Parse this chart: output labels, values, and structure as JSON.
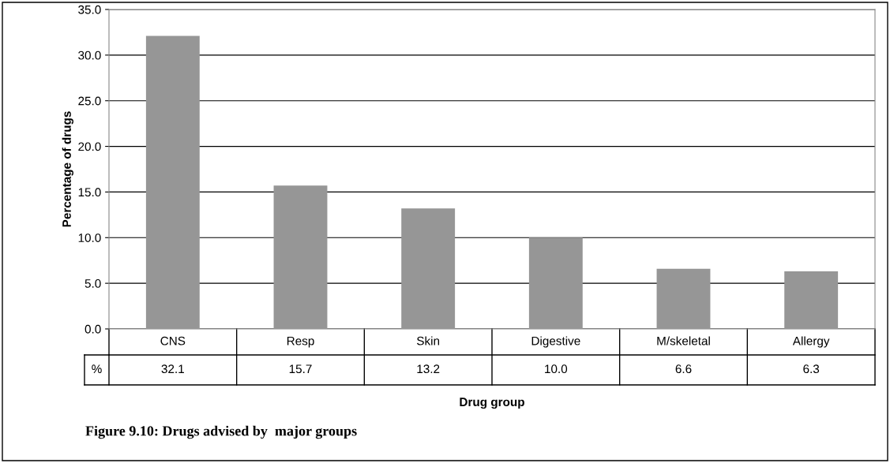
{
  "chart_data": {
    "type": "bar",
    "categories": [
      "CNS",
      "Resp",
      "Skin",
      "Digestive",
      "M/skeletal",
      "Allergy"
    ],
    "series": [
      {
        "name": "%",
        "color": "#969696",
        "values": [
          32.1,
          15.7,
          13.2,
          10.0,
          6.6,
          6.3
        ]
      }
    ],
    "value_labels": [
      "32.1",
      "15.7",
      "13.2",
      "10.0",
      "6.6",
      "6.3"
    ],
    "ylabel": "Percentage of drugs",
    "xlabel": "Drug group",
    "ylim": [
      0,
      35
    ],
    "yticks": [
      {
        "value": 0,
        "label": "0.0"
      },
      {
        "value": 5,
        "label": "5.0"
      },
      {
        "value": 10,
        "label": "10.0"
      },
      {
        "value": 15,
        "label": "15.0"
      },
      {
        "value": 20,
        "label": "20.0"
      },
      {
        "value": 25,
        "label": "25.0"
      },
      {
        "value": 30,
        "label": "30.0"
      },
      {
        "value": 35,
        "label": "35.0"
      }
    ],
    "grid": "y",
    "annotations": [
      "Figure 9.10: Drugs advised by  major groups"
    ]
  }
}
